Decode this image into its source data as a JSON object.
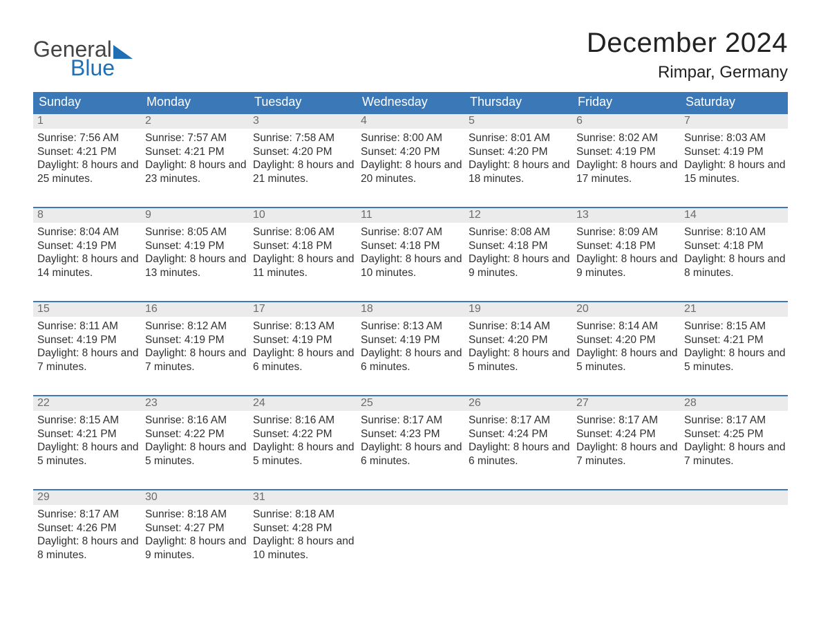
{
  "logo": {
    "line1": "General",
    "line2": "Blue",
    "colors": {
      "general": "#444444",
      "blue": "#1f6fb5"
    }
  },
  "title": "December 2024",
  "location": "Rimpar, Germany",
  "days_of_week": [
    "Sunday",
    "Monday",
    "Tuesday",
    "Wednesday",
    "Thursday",
    "Friday",
    "Saturday"
  ],
  "style": {
    "header_bg": "#3b78b8",
    "header_text": "#ffffff",
    "row_border": "#3b78b8",
    "daynum_bg": "#ebebeb",
    "daynum_color": "#6b6b6b",
    "body_text": "#303030",
    "background": "#ffffff",
    "title_fontsize": 40,
    "location_fontsize": 24,
    "dow_fontsize": 18,
    "body_fontsize": 15.5
  },
  "weeks": [
    [
      {
        "day": "1",
        "sunrise": "7:56 AM",
        "sunset": "4:21 PM",
        "daylight": "8 hours and 25 minutes."
      },
      {
        "day": "2",
        "sunrise": "7:57 AM",
        "sunset": "4:21 PM",
        "daylight": "8 hours and 23 minutes."
      },
      {
        "day": "3",
        "sunrise": "7:58 AM",
        "sunset": "4:20 PM",
        "daylight": "8 hours and 21 minutes."
      },
      {
        "day": "4",
        "sunrise": "8:00 AM",
        "sunset": "4:20 PM",
        "daylight": "8 hours and 20 minutes."
      },
      {
        "day": "5",
        "sunrise": "8:01 AM",
        "sunset": "4:20 PM",
        "daylight": "8 hours and 18 minutes."
      },
      {
        "day": "6",
        "sunrise": "8:02 AM",
        "sunset": "4:19 PM",
        "daylight": "8 hours and 17 minutes."
      },
      {
        "day": "7",
        "sunrise": "8:03 AM",
        "sunset": "4:19 PM",
        "daylight": "8 hours and 15 minutes."
      }
    ],
    [
      {
        "day": "8",
        "sunrise": "8:04 AM",
        "sunset": "4:19 PM",
        "daylight": "8 hours and 14 minutes."
      },
      {
        "day": "9",
        "sunrise": "8:05 AM",
        "sunset": "4:19 PM",
        "daylight": "8 hours and 13 minutes."
      },
      {
        "day": "10",
        "sunrise": "8:06 AM",
        "sunset": "4:18 PM",
        "daylight": "8 hours and 11 minutes."
      },
      {
        "day": "11",
        "sunrise": "8:07 AM",
        "sunset": "4:18 PM",
        "daylight": "8 hours and 10 minutes."
      },
      {
        "day": "12",
        "sunrise": "8:08 AM",
        "sunset": "4:18 PM",
        "daylight": "8 hours and 9 minutes."
      },
      {
        "day": "13",
        "sunrise": "8:09 AM",
        "sunset": "4:18 PM",
        "daylight": "8 hours and 9 minutes."
      },
      {
        "day": "14",
        "sunrise": "8:10 AM",
        "sunset": "4:18 PM",
        "daylight": "8 hours and 8 minutes."
      }
    ],
    [
      {
        "day": "15",
        "sunrise": "8:11 AM",
        "sunset": "4:19 PM",
        "daylight": "8 hours and 7 minutes."
      },
      {
        "day": "16",
        "sunrise": "8:12 AM",
        "sunset": "4:19 PM",
        "daylight": "8 hours and 7 minutes."
      },
      {
        "day": "17",
        "sunrise": "8:13 AM",
        "sunset": "4:19 PM",
        "daylight": "8 hours and 6 minutes."
      },
      {
        "day": "18",
        "sunrise": "8:13 AM",
        "sunset": "4:19 PM",
        "daylight": "8 hours and 6 minutes."
      },
      {
        "day": "19",
        "sunrise": "8:14 AM",
        "sunset": "4:20 PM",
        "daylight": "8 hours and 5 minutes."
      },
      {
        "day": "20",
        "sunrise": "8:14 AM",
        "sunset": "4:20 PM",
        "daylight": "8 hours and 5 minutes."
      },
      {
        "day": "21",
        "sunrise": "8:15 AM",
        "sunset": "4:21 PM",
        "daylight": "8 hours and 5 minutes."
      }
    ],
    [
      {
        "day": "22",
        "sunrise": "8:15 AM",
        "sunset": "4:21 PM",
        "daylight": "8 hours and 5 minutes."
      },
      {
        "day": "23",
        "sunrise": "8:16 AM",
        "sunset": "4:22 PM",
        "daylight": "8 hours and 5 minutes."
      },
      {
        "day": "24",
        "sunrise": "8:16 AM",
        "sunset": "4:22 PM",
        "daylight": "8 hours and 5 minutes."
      },
      {
        "day": "25",
        "sunrise": "8:17 AM",
        "sunset": "4:23 PM",
        "daylight": "8 hours and 6 minutes."
      },
      {
        "day": "26",
        "sunrise": "8:17 AM",
        "sunset": "4:24 PM",
        "daylight": "8 hours and 6 minutes."
      },
      {
        "day": "27",
        "sunrise": "8:17 AM",
        "sunset": "4:24 PM",
        "daylight": "8 hours and 7 minutes."
      },
      {
        "day": "28",
        "sunrise": "8:17 AM",
        "sunset": "4:25 PM",
        "daylight": "8 hours and 7 minutes."
      }
    ],
    [
      {
        "day": "29",
        "sunrise": "8:17 AM",
        "sunset": "4:26 PM",
        "daylight": "8 hours and 8 minutes."
      },
      {
        "day": "30",
        "sunrise": "8:18 AM",
        "sunset": "4:27 PM",
        "daylight": "8 hours and 9 minutes."
      },
      {
        "day": "31",
        "sunrise": "8:18 AM",
        "sunset": "4:28 PM",
        "daylight": "8 hours and 10 minutes."
      },
      null,
      null,
      null,
      null
    ]
  ],
  "labels": {
    "sunrise_prefix": "Sunrise: ",
    "sunset_prefix": "Sunset: ",
    "daylight_prefix": "Daylight: "
  }
}
